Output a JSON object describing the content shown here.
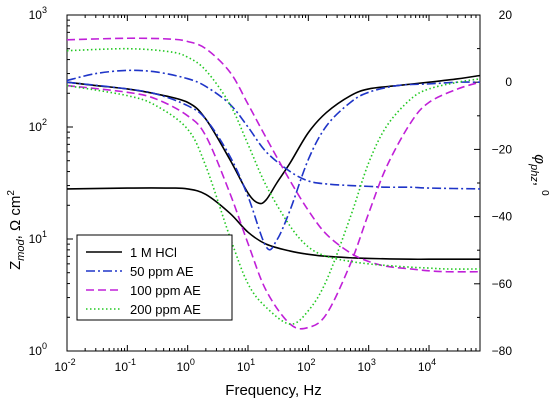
{
  "chart_data": {
    "type": "line",
    "xlabel": "Frequency, Hz",
    "ylabel_left": {
      "main": "Z",
      "sub": "mod",
      "tail": ", Ω cm",
      "sup": "2"
    },
    "ylabel_right": {
      "main": "φ",
      "sub": "phz",
      "tail": ", ",
      "sup": "0"
    },
    "x_scale": "log",
    "xlim": [
      0.01,
      70000
    ],
    "y_left_scale": "log",
    "y_left_lim": [
      1,
      1000
    ],
    "y_right_lim": [
      -80,
      20
    ],
    "x_ticks": [
      {
        "base": "10",
        "exp": "-2",
        "value": 0.01
      },
      {
        "base": "10",
        "exp": "-1",
        "value": 0.1
      },
      {
        "base": "10",
        "exp": "0",
        "value": 1
      },
      {
        "base": "10",
        "exp": "1",
        "value": 10
      },
      {
        "base": "10",
        "exp": "2",
        "value": 100
      },
      {
        "base": "10",
        "exp": "3",
        "value": 1000
      },
      {
        "base": "10",
        "exp": "4",
        "value": 10000
      }
    ],
    "y_left_ticks": [
      {
        "base": "10",
        "exp": "0",
        "value": 1
      },
      {
        "base": "10",
        "exp": "1",
        "value": 10
      },
      {
        "base": "10",
        "exp": "2",
        "value": 100
      },
      {
        "base": "10",
        "exp": "3",
        "value": 1000
      }
    ],
    "y_right_ticks": [
      "20",
      "0",
      "-20",
      "-40",
      "-60",
      "-80"
    ],
    "legend_position": "bottom-left",
    "series": [
      {
        "name": "1 M HCl",
        "color": "#000000",
        "dash": "solid",
        "impedance": {
          "x": [
            0.01,
            0.1,
            0.5,
            1,
            2,
            5,
            10,
            20,
            50,
            100,
            200,
            500,
            1000,
            5000,
            10000,
            70000
          ],
          "y": [
            28,
            28.5,
            28.5,
            28,
            25,
            17,
            11.5,
            9,
            7.8,
            7.3,
            7,
            6.8,
            6.7,
            6.6,
            6.6,
            6.6
          ]
        },
        "phase": {
          "x": [
            0.01,
            0.03,
            0.1,
            0.3,
            1,
            2,
            5,
            10,
            15,
            20,
            30,
            50,
            100,
            200,
            500,
            1000,
            3000,
            10000,
            30000,
            70000
          ],
          "y": [
            0,
            -1,
            -2,
            -3.5,
            -6,
            -11,
            -23,
            -33,
            -36,
            -35,
            -30,
            -24,
            -15,
            -9,
            -4,
            -2,
            -1,
            0,
            1,
            2
          ]
        }
      },
      {
        "name": "50 ppm AE",
        "color": "#1f35c8",
        "dash": "dashdot",
        "impedance": {
          "x": [
            0.01,
            0.03,
            0.1,
            0.3,
            1,
            2,
            5,
            10,
            20,
            50,
            100,
            200,
            500,
            1000,
            2000,
            5000,
            10000,
            70000
          ],
          "y": [
            260,
            300,
            320,
            310,
            270,
            230,
            160,
            100,
            60,
            40,
            33,
            31,
            30,
            29.5,
            29,
            29,
            28.5,
            28
          ]
        },
        "phase": {
          "x": [
            0.01,
            0.1,
            0.3,
            1,
            2,
            5,
            10,
            20,
            30,
            50,
            100,
            200,
            500,
            1000,
            3000,
            10000,
            30000,
            70000
          ],
          "y": [
            0,
            -2,
            -3.5,
            -7,
            -11,
            -22,
            -34,
            -49,
            -47,
            -38,
            -23,
            -13,
            -6,
            -3,
            -1,
            -0.5,
            0,
            0
          ]
        }
      },
      {
        "name": "100 ppm AE",
        "color": "#c020d8",
        "dash": "dashed",
        "impedance": {
          "x": [
            0.01,
            0.1,
            0.5,
            1,
            2,
            5,
            10,
            20,
            50,
            100,
            200,
            500,
            1000,
            2000,
            5000,
            10000,
            20000,
            70000
          ],
          "y": [
            600,
            620,
            610,
            580,
            500,
            310,
            160,
            80,
            33,
            18,
            11,
            7.5,
            6.3,
            5.7,
            5.4,
            5.2,
            5.1,
            5.1
          ]
        },
        "phase": {
          "x": [
            0.01,
            0.1,
            0.3,
            1,
            2,
            5,
            10,
            20,
            50,
            100,
            200,
            500,
            1000,
            2000,
            5000,
            10000,
            30000,
            70000
          ],
          "y": [
            -1,
            -3,
            -5,
            -10,
            -16,
            -33,
            -48,
            -62,
            -72,
            -73,
            -69,
            -54,
            -39,
            -25,
            -12,
            -6,
            -2,
            0
          ]
        }
      },
      {
        "name": "200 ppm AE",
        "color": "#22c822",
        "dash": "dotted",
        "impedance": {
          "x": [
            0.01,
            0.1,
            0.5,
            1,
            2,
            5,
            10,
            20,
            50,
            100,
            200,
            500,
            1000,
            2000,
            5000,
            10000,
            20000,
            70000
          ],
          "y": [
            480,
            500,
            470,
            420,
            320,
            160,
            70,
            30,
            13,
            8.5,
            7,
            6.3,
            6,
            5.8,
            5.6,
            5.5,
            5.4,
            5.4
          ]
        },
        "phase": {
          "x": [
            0.01,
            0.1,
            0.3,
            1,
            2,
            5,
            10,
            20,
            50,
            100,
            200,
            500,
            1000,
            2000,
            5000,
            10000,
            30000,
            70000
          ],
          "y": [
            -1,
            -4,
            -7,
            -14,
            -25,
            -46,
            -60,
            -67,
            -72,
            -68,
            -59,
            -40,
            -24,
            -13,
            -5,
            -2,
            0,
            1
          ]
        }
      }
    ]
  }
}
